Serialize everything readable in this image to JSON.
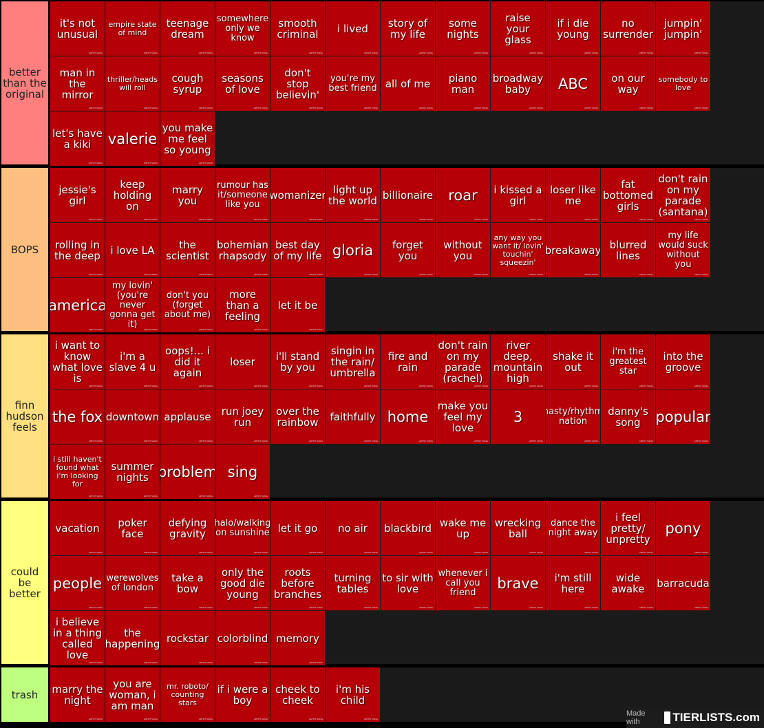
{
  "tiers": [
    {
      "label": "better than the original",
      "color": "#ff7f7f",
      "items": [
        {
          "text": "it's not unusual",
          "size": ""
        },
        {
          "text": "empire state of mind",
          "size": "sm"
        },
        {
          "text": "teenage dream",
          "size": ""
        },
        {
          "text": "somewhere only we know",
          "size": "md"
        },
        {
          "text": "smooth criminal",
          "size": ""
        },
        {
          "text": "i lived",
          "size": ""
        },
        {
          "text": "story of my life",
          "size": ""
        },
        {
          "text": "some nights",
          "size": ""
        },
        {
          "text": "raise your glass",
          "size": ""
        },
        {
          "text": "if i die young",
          "size": ""
        },
        {
          "text": "no surrender",
          "size": ""
        },
        {
          "text": "jumpin' jumpin'",
          "size": ""
        },
        {
          "text": "man in the mirror",
          "size": ""
        },
        {
          "text": "thriller/heads will roll",
          "size": "sm"
        },
        {
          "text": "cough syrup",
          "size": ""
        },
        {
          "text": "seasons of love",
          "size": ""
        },
        {
          "text": "don't stop believin'",
          "size": ""
        },
        {
          "text": "you're my best friend",
          "size": "md"
        },
        {
          "text": "all of me",
          "size": ""
        },
        {
          "text": "piano man",
          "size": ""
        },
        {
          "text": "broadway baby",
          "size": ""
        },
        {
          "text": "ABC",
          "size": "lg"
        },
        {
          "text": "on our way",
          "size": ""
        },
        {
          "text": "somebody to love",
          "size": "sm"
        },
        {
          "text": "let's have a kiki",
          "size": ""
        },
        {
          "text": "valerie",
          "size": "lg"
        },
        {
          "text": "you make me feel so young",
          "size": ""
        }
      ]
    },
    {
      "label": "BOPS",
      "color": "#ffbf7f",
      "items": [
        {
          "text": "jessie's girl",
          "size": ""
        },
        {
          "text": "keep holding on",
          "size": ""
        },
        {
          "text": "marry you",
          "size": ""
        },
        {
          "text": "rumour has it/someone like you",
          "size": "md"
        },
        {
          "text": "womanizer",
          "size": ""
        },
        {
          "text": "light up the world",
          "size": ""
        },
        {
          "text": "billionaire",
          "size": ""
        },
        {
          "text": "roar",
          "size": "lg"
        },
        {
          "text": "i kissed a girl",
          "size": ""
        },
        {
          "text": "loser like me",
          "size": ""
        },
        {
          "text": "fat bottomed girls",
          "size": ""
        },
        {
          "text": "don't rain on my parade (santana)",
          "size": ""
        },
        {
          "text": "rolling in the deep",
          "size": ""
        },
        {
          "text": "i love LA",
          "size": ""
        },
        {
          "text": "the scientist",
          "size": ""
        },
        {
          "text": "bohemian rhapsody",
          "size": ""
        },
        {
          "text": "best day of my life",
          "size": ""
        },
        {
          "text": "gloria",
          "size": "lg"
        },
        {
          "text": "forget you",
          "size": ""
        },
        {
          "text": "without you",
          "size": ""
        },
        {
          "text": "any way you want it/ lovin' touchin' squeezin'",
          "size": "sm"
        },
        {
          "text": "breakaway",
          "size": ""
        },
        {
          "text": "blurred lines",
          "size": ""
        },
        {
          "text": "my life would suck without you",
          "size": "md"
        },
        {
          "text": "america",
          "size": "lg"
        },
        {
          "text": "my lovin' (you're never gonna get it)",
          "size": "md"
        },
        {
          "text": "don't you (forget about me)",
          "size": "md"
        },
        {
          "text": "more than a feeling",
          "size": ""
        },
        {
          "text": "let it be",
          "size": ""
        }
      ]
    },
    {
      "label": "finn hudson feels",
      "color": "#ffdf7f",
      "items": [
        {
          "text": "i want to know what love is",
          "size": ""
        },
        {
          "text": "i'm a slave 4 u",
          "size": ""
        },
        {
          "text": "oops!... i did it again",
          "size": ""
        },
        {
          "text": "loser",
          "size": ""
        },
        {
          "text": "i'll stand by you",
          "size": ""
        },
        {
          "text": "singin in the rain/ umbrella",
          "size": ""
        },
        {
          "text": "fire and rain",
          "size": ""
        },
        {
          "text": "don't rain on my parade (rachel)",
          "size": ""
        },
        {
          "text": "river deep, mountain high",
          "size": ""
        },
        {
          "text": "shake it out",
          "size": ""
        },
        {
          "text": "i'm the greatest star",
          "size": "md"
        },
        {
          "text": "into the groove",
          "size": ""
        },
        {
          "text": "the fox",
          "size": "lg"
        },
        {
          "text": "downtown",
          "size": ""
        },
        {
          "text": "applause",
          "size": ""
        },
        {
          "text": "run joey run",
          "size": ""
        },
        {
          "text": "over the rainbow",
          "size": ""
        },
        {
          "text": "faithfully",
          "size": ""
        },
        {
          "text": "home",
          "size": "lg"
        },
        {
          "text": "make you feel my love",
          "size": ""
        },
        {
          "text": "3",
          "size": "lg"
        },
        {
          "text": "nasty/rhythm nation",
          "size": "md"
        },
        {
          "text": "danny's song",
          "size": ""
        },
        {
          "text": "popular",
          "size": "lg"
        },
        {
          "text": "i still haven't found what i'm looking for",
          "size": "sm"
        },
        {
          "text": "summer nights",
          "size": ""
        },
        {
          "text": "problem",
          "size": "lg"
        },
        {
          "text": "sing",
          "size": "lg"
        }
      ]
    },
    {
      "label": "could be better",
      "color": "#ffff7f",
      "items": [
        {
          "text": "vacation",
          "size": ""
        },
        {
          "text": "poker face",
          "size": ""
        },
        {
          "text": "defying gravity",
          "size": ""
        },
        {
          "text": "halo/walking on sunshine",
          "size": "md"
        },
        {
          "text": "let it go",
          "size": ""
        },
        {
          "text": "no air",
          "size": ""
        },
        {
          "text": "blackbird",
          "size": ""
        },
        {
          "text": "wake me up",
          "size": ""
        },
        {
          "text": "wrecking ball",
          "size": ""
        },
        {
          "text": "dance the night away",
          "size": "md"
        },
        {
          "text": "i feel pretty/ unpretty",
          "size": ""
        },
        {
          "text": "pony",
          "size": "lg"
        },
        {
          "text": "people",
          "size": "lg"
        },
        {
          "text": "werewolves of london",
          "size": "md"
        },
        {
          "text": "take a bow",
          "size": ""
        },
        {
          "text": "only the good die young",
          "size": ""
        },
        {
          "text": "roots before branches",
          "size": ""
        },
        {
          "text": "turning tables",
          "size": ""
        },
        {
          "text": "to sir with love",
          "size": ""
        },
        {
          "text": "whenever i call you friend",
          "size": "md"
        },
        {
          "text": "brave",
          "size": "lg"
        },
        {
          "text": "i'm still here",
          "size": ""
        },
        {
          "text": "wide awake",
          "size": ""
        },
        {
          "text": "barracuda",
          "size": ""
        },
        {
          "text": "i believe in a thing called love",
          "size": ""
        },
        {
          "text": "the happening",
          "size": ""
        },
        {
          "text": "rockstar",
          "size": ""
        },
        {
          "text": "colorblind",
          "size": ""
        },
        {
          "text": "memory",
          "size": ""
        }
      ]
    },
    {
      "label": "trash",
      "color": "#bfff7f",
      "items": [
        {
          "text": "marry the night",
          "size": ""
        },
        {
          "text": "you are woman, i am man",
          "size": ""
        },
        {
          "text": "mr. roboto/ counting stars",
          "size": "sm"
        },
        {
          "text": "if i were a boy",
          "size": ""
        },
        {
          "text": "cheek to cheek",
          "size": ""
        },
        {
          "text": "i'm his child",
          "size": ""
        }
      ]
    }
  ],
  "tile_mark": "ARTIST SONG",
  "tile_color": "#b50007",
  "badge": {
    "made_with": "Made with",
    "logo": "TIERLISTS.com"
  }
}
